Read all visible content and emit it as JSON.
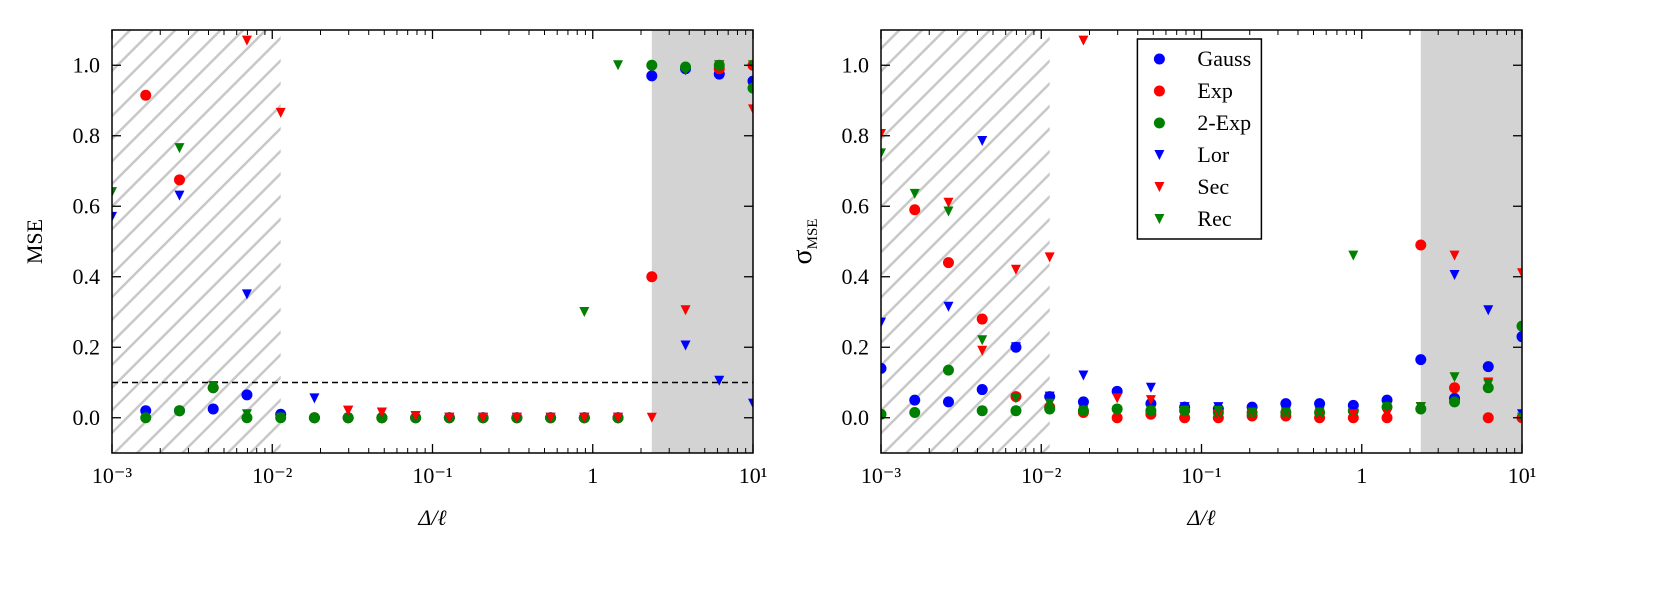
{
  "chart_data": [
    {
      "type": "scatter",
      "xlabel": "Δ/ℓ",
      "ylabel": "MSE",
      "xscale": "log",
      "xlim": [
        0.001,
        10
      ],
      "ylim": [
        -0.1,
        1.1
      ],
      "xticks": [
        {
          "value": 0.001,
          "label": "10⁻³"
        },
        {
          "value": 0.01,
          "label": "10⁻²"
        },
        {
          "value": 0.1,
          "label": "10⁻¹"
        },
        1,
        {
          "value": 10,
          "label": "10¹"
        }
      ],
      "yticks": [
        {
          "value": 0,
          "label": "0.0"
        },
        0.2,
        0.4,
        0.6,
        0.8,
        {
          "value": 1,
          "label": "1.0"
        }
      ],
      "regions": [
        {
          "x": [
            0.001,
            0.01129
          ],
          "style": "hatch"
        },
        {
          "x": [
            2.336,
            10
          ],
          "style": "gray"
        }
      ],
      "hline": 0.1,
      "x": [
        0.001,
        0.001624,
        0.002637,
        0.004281,
        0.006952,
        0.01129,
        0.01833,
        0.02976,
        0.04833,
        0.07848,
        0.1274,
        0.2069,
        0.336,
        0.5456,
        0.8859,
        1.438,
        2.336,
        3.793,
        6.158,
        10
      ],
      "series": [
        {
          "color": "#0000ff",
          "marker": "o",
          "values": [
            null,
            0.02,
            0.02,
            0.025,
            0.065,
            0.01,
            0,
            0,
            0,
            0,
            0,
            0,
            0,
            0,
            0,
            0,
            0.97,
            0.99,
            0.975,
            0.955
          ]
        },
        {
          "color": "#ff0000",
          "marker": "o",
          "values": [
            null,
            0.915,
            0.675,
            0.085,
            null,
            null,
            0,
            0,
            0,
            0,
            0,
            0,
            0,
            0,
            0,
            0,
            0.4,
            null,
            0.99,
            1.0
          ]
        },
        {
          "color": "#008000",
          "marker": "o",
          "values": [
            null,
            0,
            0.02,
            0.085,
            0,
            0,
            0,
            0,
            0,
            0,
            0,
            0,
            0,
            0,
            0,
            0,
            1.0,
            0.995,
            1.0,
            0.935
          ]
        },
        {
          "color": "#0000ff",
          "marker": "v",
          "values": [
            0.57,
            null,
            0.63,
            null,
            0.35,
            null,
            0.055,
            0.02,
            0.015,
            0.005,
            0,
            0,
            0,
            0,
            0,
            0,
            null,
            0.205,
            0.105,
            0.04
          ]
        },
        {
          "color": "#ff0000",
          "marker": "v",
          "values": [
            null,
            null,
            null,
            null,
            1.07,
            0.865,
            null,
            0.02,
            0.015,
            0.005,
            0,
            0,
            0,
            0,
            0,
            0,
            0,
            0.305,
            1.0,
            0.875
          ]
        },
        {
          "color": "#008000",
          "marker": "v",
          "values": [
            0.64,
            null,
            0.765,
            0.09,
            0.01,
            0,
            null,
            null,
            null,
            null,
            null,
            null,
            null,
            null,
            0.3,
            1.0,
            null,
            0.985,
            1.0,
            1.0
          ]
        }
      ]
    },
    {
      "type": "scatter",
      "xlabel": "Δ/ℓ",
      "ylabel": "σ",
      "ylabel_sub": "MSE",
      "xscale": "log",
      "xlim": [
        0.001,
        10
      ],
      "ylim": [
        -0.1,
        1.1
      ],
      "xticks": [
        {
          "value": 0.001,
          "label": "10⁻³"
        },
        {
          "value": 0.01,
          "label": "10⁻²"
        },
        {
          "value": 0.1,
          "label": "10⁻¹"
        },
        1,
        {
          "value": 10,
          "label": "10¹"
        }
      ],
      "yticks": [
        {
          "value": 0,
          "label": "0.0"
        },
        0.2,
        0.4,
        0.6,
        0.8,
        {
          "value": 1,
          "label": "1.0"
        }
      ],
      "regions": [
        {
          "x": [
            0.001,
            0.01129
          ],
          "style": "hatch"
        },
        {
          "x": [
            2.336,
            10
          ],
          "style": "gray"
        }
      ],
      "legend": "upper center",
      "x": [
        0.001,
        0.001624,
        0.002637,
        0.004281,
        0.006952,
        0.01129,
        0.01833,
        0.02976,
        0.04833,
        0.07848,
        0.1274,
        0.2069,
        0.336,
        0.5456,
        0.8859,
        1.438,
        2.336,
        3.793,
        6.158,
        10
      ],
      "series": [
        {
          "name": "Gauss",
          "color": "#0000ff",
          "marker": "o",
          "values": [
            0.14,
            0.05,
            0.045,
            0.08,
            0.2,
            0.06,
            0.045,
            0.075,
            0.04,
            0.03,
            0.025,
            0.03,
            0.04,
            0.04,
            0.035,
            0.05,
            0.165,
            0.055,
            0.145,
            0.23
          ]
        },
        {
          "name": "Exp",
          "color": "#ff0000",
          "marker": "o",
          "values": [
            null,
            0.59,
            0.44,
            0.28,
            0.06,
            0.03,
            0.015,
            0,
            0.01,
            0,
            0,
            0.005,
            0.005,
            0,
            0,
            0,
            0.49,
            0.085,
            0,
            0
          ]
        },
        {
          "name": "2-Exp",
          "color": "#008000",
          "marker": "o",
          "values": [
            0.01,
            0.015,
            0.135,
            0.02,
            0.02,
            0.025,
            0.02,
            0.025,
            0.02,
            0.02,
            0.015,
            0.015,
            0.015,
            0.015,
            0.02,
            0.03,
            0.025,
            0.045,
            0.085,
            0.26
          ]
        },
        {
          "name": "Lor",
          "color": "#0000ff",
          "marker": "v",
          "values": [
            0.27,
            null,
            0.315,
            0.785,
            0.2,
            0.06,
            0.12,
            0.06,
            0.085,
            0.03,
            0.03,
            0.02,
            0.02,
            0.02,
            0.02,
            0.03,
            0.03,
            0.405,
            0.305,
            0.01
          ]
        },
        {
          "name": "Sec",
          "color": "#ff0000",
          "marker": "v",
          "values": [
            0.805,
            null,
            0.61,
            0.19,
            0.42,
            0.455,
            1.07,
            0.055,
            0.05,
            0.02,
            0.01,
            0.01,
            0.01,
            0.01,
            0.01,
            0.01,
            0.03,
            0.46,
            0.1,
            0.41
          ]
        },
        {
          "name": "Rec",
          "color": "#008000",
          "marker": "v",
          "values": [
            0.75,
            0.635,
            0.585,
            0.22,
            0.055,
            0.04,
            0.02,
            0.02,
            0.02,
            0.02,
            0.02,
            0.015,
            0.015,
            0.015,
            0.46,
            0.03,
            0.03,
            0.115,
            0.095,
            0
          ]
        }
      ]
    }
  ]
}
